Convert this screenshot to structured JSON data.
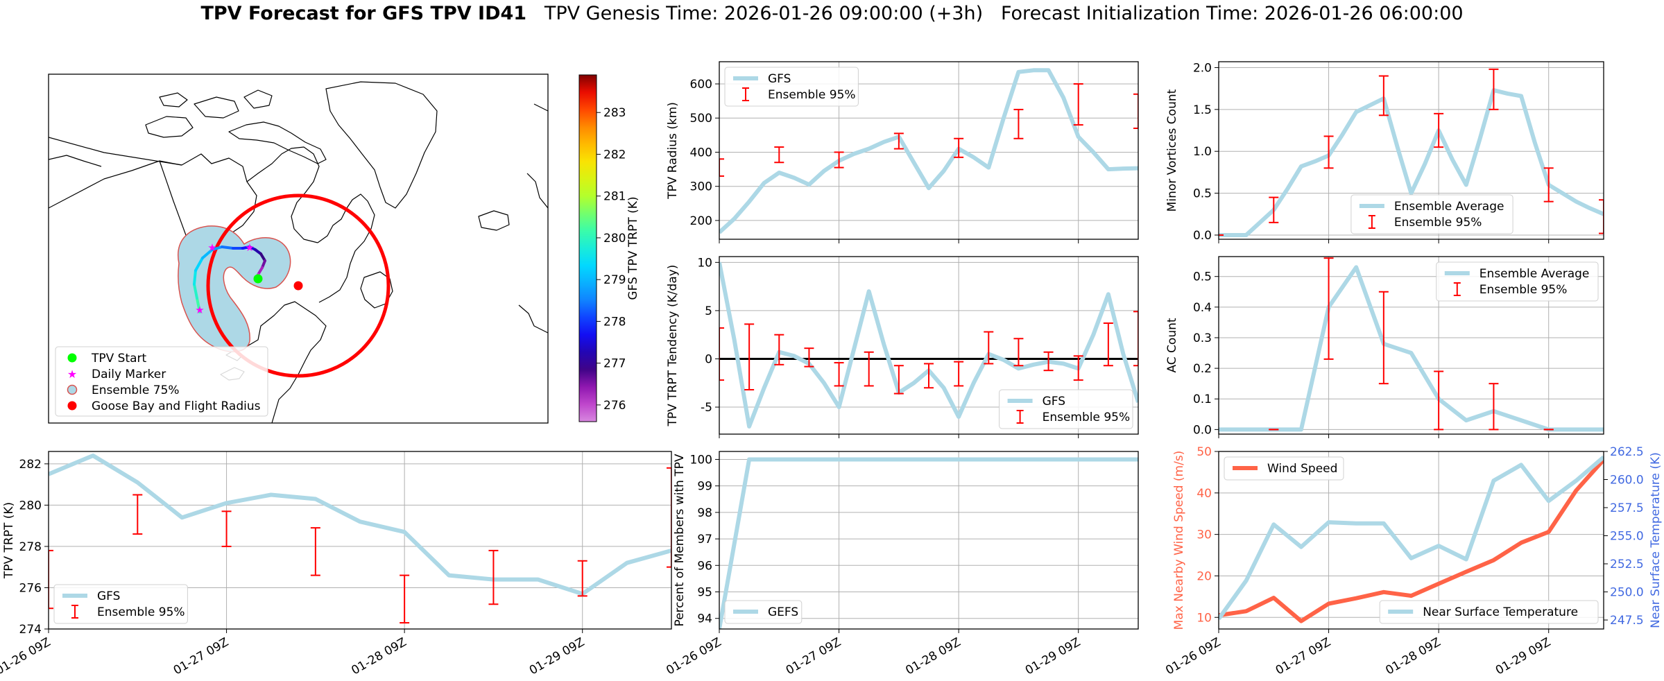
{
  "header": {
    "title_bold": "TPV Forecast for GFS TPV ID41",
    "genesis": "TPV Genesis Time: 2026-01-26 09:00:00 (+3h)",
    "init": "Forecast Initialization Time: 2026-01-26 06:00:00"
  },
  "colors": {
    "line": "#add8e6",
    "errorbar": "#ff0000",
    "wind": "#ff6347",
    "temp_axis": "#4169e1",
    "track_marker": "#00ff00",
    "daily_marker": "#ff00ff"
  },
  "chart_data": [
    {
      "id": "map",
      "type": "map",
      "legend": [
        "TPV Start",
        "Daily Marker",
        "Ensemble 75%",
        "Goose Bay and Flight Radius"
      ],
      "colorbar": {
        "label": "GFS TPV TRPT (K)",
        "ticks": [
          276,
          277,
          278,
          279,
          280,
          281,
          282,
          283
        ],
        "range": [
          275.6,
          283.9
        ],
        "colormap": "gist_ncar_r"
      },
      "track_trpt": [
        276.0,
        276.3,
        276.6,
        276.9,
        277.2,
        277.5,
        277.8,
        278.1,
        278.4,
        278.7,
        279.0,
        279.3,
        279.6,
        279.9,
        280.2,
        280.5,
        280.8,
        281.1,
        281.4,
        281.7
      ]
    },
    {
      "id": "radius",
      "type": "line",
      "ylabel": "TPV Radius (km)",
      "ylim": [
        145,
        665
      ],
      "yticks": [
        200,
        300,
        400,
        500,
        600
      ],
      "xlim": [
        0,
        3.5
      ],
      "xticks": [
        0,
        1,
        2,
        3
      ],
      "legend": [
        "GFS",
        "Ensemble 95%"
      ],
      "legend_pos": "upper-left",
      "series": [
        {
          "name": "GFS",
          "x": [
            0,
            0.125,
            0.25,
            0.375,
            0.5,
            0.625,
            0.75,
            0.875,
            1,
            1.125,
            1.25,
            1.375,
            1.5,
            1.625,
            1.75,
            1.875,
            2,
            2.125,
            2.25,
            2.375,
            2.5,
            2.625,
            2.75,
            2.875,
            3,
            3.125,
            3.25,
            3.375,
            3.5
          ],
          "values": [
            165,
            205,
            255,
            310,
            340,
            325,
            305,
            345,
            375,
            395,
            410,
            430,
            445,
            370,
            295,
            345,
            410,
            385,
            355,
            500,
            635,
            640,
            640,
            560,
            445,
            400,
            350,
            352,
            353
          ]
        }
      ],
      "errorbars": [
        {
          "x": 0,
          "lo": 330,
          "hi": 380
        },
        {
          "x": 0.5,
          "lo": 370,
          "hi": 415
        },
        {
          "x": 1,
          "lo": 355,
          "hi": 400
        },
        {
          "x": 1.5,
          "lo": 410,
          "hi": 455
        },
        {
          "x": 2,
          "lo": 385,
          "hi": 440
        },
        {
          "x": 2.5,
          "lo": 440,
          "hi": 525
        },
        {
          "x": 3,
          "lo": 480,
          "hi": 600
        },
        {
          "x": 3.5,
          "lo": 470,
          "hi": 570
        }
      ]
    },
    {
      "id": "minor_vortices",
      "type": "line",
      "ylabel": "Minor Vortices Count",
      "ylim": [
        -0.05,
        2.07
      ],
      "yticks": [
        0.0,
        0.5,
        1.0,
        1.5,
        2.0
      ],
      "xlim": [
        0,
        3.5
      ],
      "xticks": [
        0,
        1,
        2,
        3
      ],
      "legend": [
        "Ensemble Average",
        "Ensemble 95%"
      ],
      "legend_pos": "lower-center",
      "series": [
        {
          "name": "Ensemble Average",
          "x": [
            0,
            0.125,
            0.25,
            0.375,
            0.5,
            0.625,
            0.75,
            0.875,
            1,
            1.125,
            1.25,
            1.375,
            1.5,
            1.625,
            1.75,
            1.875,
            2,
            2.125,
            2.25,
            2.375,
            2.5,
            2.625,
            2.75,
            2.875,
            3,
            3.125,
            3.25,
            3.375,
            3.5
          ],
          "values": [
            0,
            0,
            0,
            0.15,
            0.3,
            0.55,
            0.82,
            0.88,
            0.95,
            1.2,
            1.47,
            1.55,
            1.63,
            1.05,
            0.5,
            0.85,
            1.25,
            0.9,
            0.6,
            1.15,
            1.73,
            1.69,
            1.66,
            1.1,
            0.6,
            0.5,
            0.4,
            0.32,
            0.25
          ]
        }
      ],
      "errorbars": [
        {
          "x": 0,
          "lo": 0,
          "hi": 0
        },
        {
          "x": 0.5,
          "lo": 0.15,
          "hi": 0.45
        },
        {
          "x": 1,
          "lo": 0.8,
          "hi": 1.18
        },
        {
          "x": 1.5,
          "lo": 1.43,
          "hi": 1.9
        },
        {
          "x": 2,
          "lo": 1.05,
          "hi": 1.45
        },
        {
          "x": 2.5,
          "lo": 1.5,
          "hi": 1.98
        },
        {
          "x": 3,
          "lo": 0.4,
          "hi": 0.8
        },
        {
          "x": 3.5,
          "lo": 0.02,
          "hi": 0.42
        }
      ]
    },
    {
      "id": "tendency",
      "type": "line",
      "ylabel": "TPV TRPT Tendency (K/day)",
      "ylim": [
        -7.8,
        10.6
      ],
      "yticks": [
        -5,
        0,
        5,
        10
      ],
      "xlim": [
        0,
        3.5
      ],
      "xticks": [
        0,
        1,
        2,
        3
      ],
      "zero_line": true,
      "legend": [
        "GFS",
        "Ensemble 95%"
      ],
      "legend_pos": "lower-right",
      "series": [
        {
          "name": "GFS",
          "x": [
            0,
            0.125,
            0.25,
            0.375,
            0.5,
            0.625,
            0.75,
            0.875,
            1,
            1.125,
            1.25,
            1.375,
            1.5,
            1.625,
            1.75,
            1.875,
            2,
            2.125,
            2.25,
            2.375,
            2.5,
            2.625,
            2.75,
            2.875,
            3,
            3.125,
            3.25,
            3.375,
            3.5
          ],
          "values": [
            10,
            2,
            -7,
            -3,
            0.7,
            0.3,
            -0.5,
            -2.5,
            -5,
            1,
            7,
            1.5,
            -3.5,
            -2.5,
            -1.2,
            -3,
            -6,
            -2.5,
            0.5,
            -0.1,
            -1,
            -0.6,
            -0.3,
            -0.5,
            -1,
            2.5,
            6.7,
            0.5,
            -4.5
          ]
        }
      ],
      "errorbars": [
        {
          "x": 0,
          "lo": -2.2,
          "hi": 3.2
        },
        {
          "x": 0.25,
          "lo": -3.2,
          "hi": 3.6
        },
        {
          "x": 0.5,
          "lo": -0.6,
          "hi": 2.5
        },
        {
          "x": 0.75,
          "lo": -0.8,
          "hi": 1.1
        },
        {
          "x": 1,
          "lo": -2.8,
          "hi": -0.4
        },
        {
          "x": 1.25,
          "lo": -2.8,
          "hi": 0.7
        },
        {
          "x": 1.5,
          "lo": -3.6,
          "hi": -0.7
        },
        {
          "x": 1.75,
          "lo": -3,
          "hi": -0.5
        },
        {
          "x": 2,
          "lo": -2.8,
          "hi": -0.3
        },
        {
          "x": 2.25,
          "lo": -0.5,
          "hi": 2.8
        },
        {
          "x": 2.5,
          "lo": -0.7,
          "hi": 2.1
        },
        {
          "x": 2.75,
          "lo": -1.2,
          "hi": 0.7
        },
        {
          "x": 3,
          "lo": -2.2,
          "hi": 0.3
        },
        {
          "x": 3.25,
          "lo": -0.7,
          "hi": 3.7
        },
        {
          "x": 3.5,
          "lo": -0.7,
          "hi": 4.9
        }
      ]
    },
    {
      "id": "ac_count",
      "type": "line",
      "ylabel": "AC Count",
      "ylim": [
        -0.015,
        0.565
      ],
      "yticks": [
        0.0,
        0.1,
        0.2,
        0.3,
        0.4,
        0.5
      ],
      "xlim": [
        0,
        3.5
      ],
      "xticks": [
        0,
        1,
        2,
        3
      ],
      "legend": [
        "Ensemble Average",
        "Ensemble 95%"
      ],
      "legend_pos": "upper-right",
      "series": [
        {
          "name": "Ensemble Average",
          "x": [
            0,
            0.25,
            0.5,
            0.75,
            1,
            1.25,
            1.5,
            1.75,
            2,
            2.25,
            2.5,
            2.75,
            3,
            3.25,
            3.5
          ],
          "values": [
            0,
            0,
            0,
            0,
            0.4,
            0.53,
            0.28,
            0.25,
            0.1,
            0.03,
            0.06,
            0.03,
            0,
            0,
            0
          ]
        }
      ],
      "errorbars": [
        {
          "x": 0.5,
          "lo": 0,
          "hi": 0
        },
        {
          "x": 1,
          "lo": 0.23,
          "hi": 0.56
        },
        {
          "x": 1.5,
          "lo": 0.15,
          "hi": 0.45
        },
        {
          "x": 2,
          "lo": 0,
          "hi": 0.19
        },
        {
          "x": 2.5,
          "lo": 0,
          "hi": 0.15
        },
        {
          "x": 3,
          "lo": 0,
          "hi": 0
        }
      ]
    },
    {
      "id": "trpt",
      "type": "line",
      "ylabel": "TPV TRPT (K)",
      "ylim": [
        274,
        282.6
      ],
      "yticks": [
        274,
        276,
        278,
        280,
        282
      ],
      "xlim": [
        0,
        3.5
      ],
      "xticks": [
        0,
        1,
        2,
        3
      ],
      "xticklabels": [
        "01-26 09Z",
        "01-27 09Z",
        "01-28 09Z",
        "01-29 09Z"
      ],
      "legend": [
        "GFS",
        "Ensemble 95%"
      ],
      "legend_pos": "lower-left",
      "series": [
        {
          "name": "GFS",
          "x": [
            0,
            0.25,
            0.5,
            0.75,
            1,
            1.25,
            1.5,
            1.75,
            2,
            2.25,
            2.5,
            2.75,
            3,
            3.25,
            3.5
          ],
          "values": [
            281.5,
            282.4,
            281.1,
            279.4,
            280.1,
            280.5,
            280.3,
            279.2,
            278.7,
            276.6,
            276.4,
            276.4,
            275.7,
            277.2,
            277.8
          ]
        }
      ],
      "errorbars": [
        {
          "x": 0,
          "lo": 275,
          "hi": 277.8
        },
        {
          "x": 0.5,
          "lo": 278.6,
          "hi": 280.5
        },
        {
          "x": 1,
          "lo": 278,
          "hi": 279.7
        },
        {
          "x": 1.5,
          "lo": 276.6,
          "hi": 278.9
        },
        {
          "x": 2,
          "lo": 274.3,
          "hi": 276.6
        },
        {
          "x": 2.5,
          "lo": 275.2,
          "hi": 277.8
        },
        {
          "x": 3,
          "lo": 275.6,
          "hi": 277.3
        },
        {
          "x": 3.5,
          "lo": 277,
          "hi": 281.8
        }
      ]
    },
    {
      "id": "percent",
      "type": "line",
      "ylabel": "Percent of Members with TPV",
      "ylim": [
        93.6,
        100.3
      ],
      "yticks": [
        94,
        95,
        96,
        97,
        98,
        99,
        100
      ],
      "xlim": [
        0,
        3.5
      ],
      "xticks": [
        0,
        1,
        2,
        3
      ],
      "xticklabels": [
        "01-26 09Z",
        "01-27 09Z",
        "01-28 09Z",
        "01-29 09Z"
      ],
      "legend": [
        "GEFS"
      ],
      "legend_pos": "lower-left",
      "series": [
        {
          "name": "GEFS",
          "x": [
            0,
            0.25,
            0.5,
            3.5
          ],
          "values": [
            93.6,
            100,
            100,
            100
          ]
        }
      ]
    },
    {
      "id": "wind_temp",
      "type": "line",
      "ylabel": "Max Nearby Wind Speed (m/s)",
      "y2label": "Near Surface Temperature (K)",
      "ylim": [
        7.2,
        50
      ],
      "yticks": [
        10,
        20,
        30,
        40,
        50
      ],
      "y2lim": [
        246.7,
        262.5
      ],
      "y2ticks": [
        247.5,
        250.0,
        252.5,
        255.0,
        257.5,
        260.0,
        262.5
      ],
      "xlim": [
        0,
        3.5
      ],
      "xticks": [
        0,
        1,
        2,
        3
      ],
      "xticklabels": [
        "01-26 09Z",
        "01-27 09Z",
        "01-28 09Z",
        "01-29 09Z"
      ],
      "legend": [
        "Wind Speed",
        "Near Surface Temperature"
      ],
      "series": [
        {
          "name": "Wind Speed",
          "axis": "left",
          "x": [
            0,
            0.25,
            0.5,
            0.75,
            1,
            1.25,
            1.5,
            1.75,
            2,
            2.25,
            2.5,
            2.75,
            3,
            3.25,
            3.5
          ],
          "values": [
            10.5,
            11.5,
            14.7,
            9.1,
            13.3,
            14.6,
            16.1,
            15.2,
            18.1,
            21,
            23.8,
            28,
            30.6,
            40.6,
            48
          ]
        },
        {
          "name": "Near Surface Temperature",
          "axis": "right",
          "x": [
            0,
            0.25,
            0.5,
            0.75,
            1,
            1.25,
            1.5,
            1.75,
            2,
            2.25,
            2.5,
            2.75,
            3,
            3.25,
            3.5
          ],
          "values": [
            247.6,
            251,
            256,
            254,
            256.2,
            256.1,
            256.1,
            253,
            254.1,
            252.9,
            259.9,
            261.3,
            258.1,
            259.9,
            262
          ]
        }
      ]
    }
  ]
}
